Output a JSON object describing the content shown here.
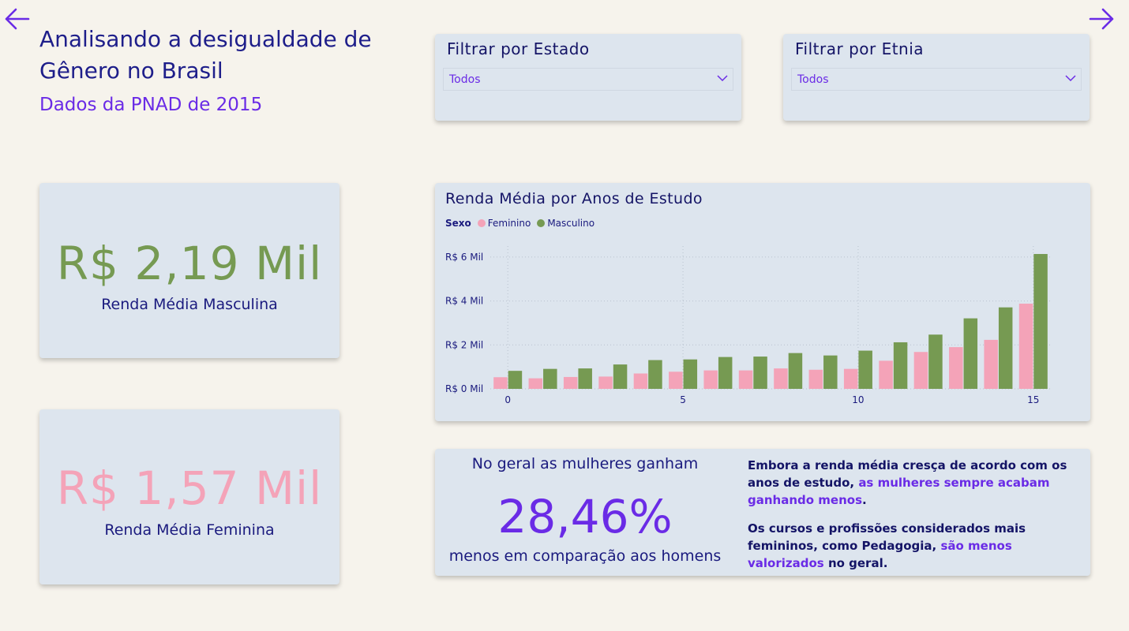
{
  "header": {
    "title": "Analisando a desigualdade de Gênero no Brasil",
    "subtitle": "Dados da PNAD de 2015"
  },
  "nav": {
    "back_icon": "arrow-left-icon",
    "forward_icon": "arrow-right-icon"
  },
  "filters": {
    "state": {
      "title": "Filtrar por Estado",
      "value": "Todos"
    },
    "ethnicity": {
      "title": "Filtrar por Etnia",
      "value": "Todos"
    }
  },
  "kpis": {
    "male": {
      "value": "R$ 2,19 Mil",
      "label": "Renda Média Masculina"
    },
    "female": {
      "value": "R$ 1,57 Mil",
      "label": "Renda Média Feminina"
    }
  },
  "insight": {
    "top": "No geral as mulheres ganham",
    "percent": "28,46%",
    "bottom": "menos em comparação aos homens",
    "p1_a": "Embora a renda média cresça de acordo com os anos de estudo, ",
    "p1_b": "as mulheres sempre acabam ganhando menos",
    "p1_c": ".",
    "p2_a": "Os cursos e profissões considerados mais femininos, como Pedagogia, ",
    "p2_b": "são menos valorizados",
    "p2_c": " no geral."
  },
  "colors": {
    "female": "#f4a3b8",
    "male": "#769a52",
    "accent": "#6a2be6"
  },
  "chart_data": {
    "type": "bar",
    "title": "Renda Média por Anos de Estudo",
    "legend_title": "Sexo",
    "legend_position": "top-left",
    "x": [
      0,
      1,
      2,
      3,
      4,
      5,
      6,
      7,
      8,
      9,
      10,
      11,
      12,
      13,
      14,
      15
    ],
    "x_ticks": [
      0,
      5,
      10,
      15
    ],
    "y_ticks": [
      {
        "value": 0,
        "label": "R$ 0 Mil"
      },
      {
        "value": 2000,
        "label": "R$ 2 Mil"
      },
      {
        "value": 4000,
        "label": "R$ 4 Mil"
      },
      {
        "value": 6000,
        "label": "R$ 6 Mil"
      }
    ],
    "ylim": [
      0,
      6500
    ],
    "grid": true,
    "series": [
      {
        "name": "Feminino",
        "color": "#f4a3b8",
        "values": [
          530,
          480,
          540,
          560,
          700,
          780,
          840,
          840,
          930,
          870,
          910,
          1280,
          1680,
          1900,
          2230,
          3880
        ]
      },
      {
        "name": "Masculino",
        "color": "#769a52",
        "values": [
          820,
          910,
          930,
          1110,
          1310,
          1340,
          1450,
          1470,
          1630,
          1520,
          1740,
          2120,
          2470,
          3210,
          3710,
          6140
        ]
      }
    ]
  }
}
